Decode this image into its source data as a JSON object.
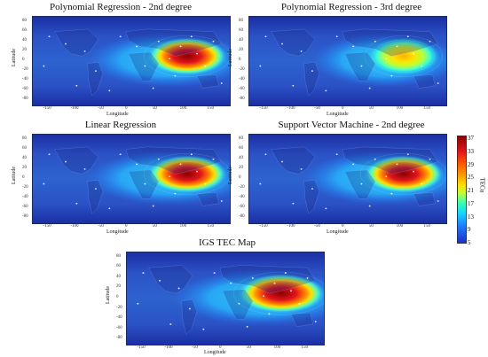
{
  "panels": [
    {
      "id": "p1",
      "title": "Polynomial Regression - 2nd degree",
      "hot_level": 0.9,
      "hot_spread": 1.0
    },
    {
      "id": "p2",
      "title": "Polynomial Regression - 3rd degree",
      "hot_level": 0.55,
      "hot_spread": 0.9
    },
    {
      "id": "p3",
      "title": "Linear Regression",
      "hot_level": 0.95,
      "hot_spread": 1.0
    },
    {
      "id": "p4",
      "title": "Support Vector Machine - 2nd degree",
      "hot_level": 0.92,
      "hot_spread": 1.0
    },
    {
      "id": "p5",
      "title": "IGS TEC Map",
      "hot_level": 0.85,
      "hot_spread": 1.1
    }
  ],
  "axes": {
    "xlabel": "Longitude",
    "ylabel": "Latitude",
    "xticks": [
      "-150",
      "-100",
      "-50",
      "0",
      "50",
      "100",
      "150"
    ],
    "yticks": [
      "80",
      "60",
      "40",
      "20",
      "0",
      "-20",
      "-40",
      "-60",
      "-80"
    ]
  },
  "colorbar": {
    "label": "TECu",
    "ticks": [
      "37",
      "33",
      "29",
      "25",
      "21",
      "17",
      "13",
      "9",
      "5"
    ]
  },
  "chart_data": [
    {
      "type": "heatmap",
      "title": "Polynomial Regression - 2nd degree",
      "xlabel": "Longitude",
      "ylabel": "Latitude",
      "xlim": [
        -180,
        180
      ],
      "ylim": [
        -90,
        90
      ],
      "colorbar": "TECu",
      "clim": [
        5,
        37
      ],
      "peak_region": {
        "lon": [
          50,
          150
        ],
        "lat": [
          -10,
          30
        ]
      },
      "peak_value": 37
    },
    {
      "type": "heatmap",
      "title": "Polynomial Regression - 3rd degree",
      "xlabel": "Longitude",
      "ylabel": "Latitude",
      "xlim": [
        -180,
        180
      ],
      "ylim": [
        -90,
        90
      ],
      "colorbar": "TECu",
      "clim": [
        5,
        37
      ],
      "peak_region": {
        "lon": [
          60,
          150
        ],
        "lat": [
          -10,
          25
        ]
      },
      "peak_value": 27
    },
    {
      "type": "heatmap",
      "title": "Linear Regression",
      "xlabel": "Longitude",
      "ylabel": "Latitude",
      "xlim": [
        -180,
        180
      ],
      "ylim": [
        -90,
        90
      ],
      "colorbar": "TECu",
      "clim": [
        5,
        37
      ],
      "peak_region": {
        "lon": [
          50,
          150
        ],
        "lat": [
          -10,
          30
        ]
      },
      "peak_value": 37
    },
    {
      "type": "heatmap",
      "title": "Support Vector Machine - 2nd degree",
      "xlabel": "Longitude",
      "ylabel": "Latitude",
      "xlim": [
        -180,
        180
      ],
      "ylim": [
        -90,
        90
      ],
      "colorbar": "TECu",
      "clim": [
        5,
        37
      ],
      "peak_region": {
        "lon": [
          50,
          150
        ],
        "lat": [
          -10,
          30
        ]
      },
      "peak_value": 37
    },
    {
      "type": "heatmap",
      "title": "IGS TEC Map",
      "xlabel": "Longitude",
      "ylabel": "Latitude",
      "xlim": [
        -180,
        180
      ],
      "ylim": [
        -90,
        90
      ],
      "colorbar": "TECu",
      "clim": [
        5,
        37
      ],
      "peak_region": {
        "lon": [
          40,
          160
        ],
        "lat": [
          -20,
          30
        ]
      },
      "peak_value": 35
    }
  ]
}
